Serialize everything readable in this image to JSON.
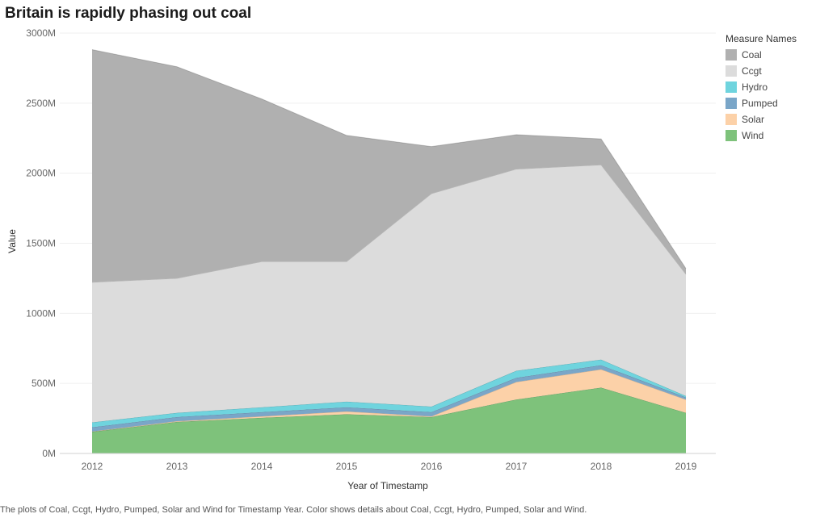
{
  "title": "Britain is rapidly phasing out coal",
  "footer": "The plots of Coal, Ccgt, Hydro, Pumped, Solar and Wind for Timestamp Year.  Color shows details about Coal, Ccgt, Hydro, Pumped, Solar and Wind.",
  "legend": {
    "title": "Measure Names",
    "items": [
      {
        "label": "Coal",
        "color": "#b0b0b0"
      },
      {
        "label": "Ccgt",
        "color": "#dcdcdc"
      },
      {
        "label": "Hydro",
        "color": "#6fd4de"
      },
      {
        "label": "Pumped",
        "color": "#7aa6c8"
      },
      {
        "label": "Solar",
        "color": "#fcd1a8"
      },
      {
        "label": "Wind",
        "color": "#7ec27b"
      }
    ]
  },
  "chart_data": {
    "type": "area",
    "stacked": true,
    "title": "Britain is rapidly phasing out coal",
    "xlabel": "Year of Timestamp",
    "ylabel": "Value",
    "x": [
      "2012",
      "2013",
      "2014",
      "2015",
      "2016",
      "2017",
      "2018",
      "2019"
    ],
    "ylim": [
      0,
      3000
    ],
    "yticks": [
      "0M",
      "500M",
      "1000M",
      "1500M",
      "2000M",
      "2500M",
      "3000M"
    ],
    "ytick_values": [
      0,
      500,
      1000,
      1500,
      2000,
      2500,
      3000
    ],
    "grid": true,
    "legend_position": "right",
    "series": [
      {
        "name": "Wind",
        "color": "#7ec27b",
        "values": [
          155,
          225,
          255,
          280,
          260,
          385,
          470,
          290
        ]
      },
      {
        "name": "Solar",
        "color": "#fcd1a8",
        "values": [
          2,
          5,
          10,
          20,
          5,
          125,
          130,
          95
        ]
      },
      {
        "name": "Pumped",
        "color": "#7aa6c8",
        "values": [
          30,
          30,
          30,
          30,
          30,
          30,
          30,
          15
        ]
      },
      {
        "name": "Hydro",
        "color": "#6fd4de",
        "values": [
          35,
          30,
          35,
          40,
          40,
          50,
          40,
          10
        ]
      },
      {
        "name": "Ccgt",
        "color": "#dcdcdc",
        "values": [
          1000,
          960,
          1040,
          1000,
          1520,
          1440,
          1390,
          870
        ]
      },
      {
        "name": "Coal",
        "color": "#b0b0b0",
        "values": [
          1660,
          1510,
          1160,
          900,
          335,
          245,
          185,
          40
        ]
      }
    ]
  }
}
